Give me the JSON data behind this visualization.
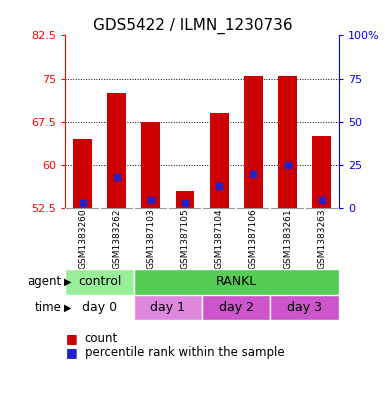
{
  "title": "GDS5422 / ILMN_1230736",
  "samples": [
    "GSM1383260",
    "GSM1383262",
    "GSM1387103",
    "GSM1387105",
    "GSM1387104",
    "GSM1387106",
    "GSM1383261",
    "GSM1383263"
  ],
  "counts": [
    64.5,
    72.5,
    67.5,
    55.5,
    69.0,
    75.5,
    75.5,
    65.0
  ],
  "percentiles": [
    3,
    18,
    5,
    3,
    13,
    20,
    25,
    5
  ],
  "ymin": 52.5,
  "ymax": 82.5,
  "yticks": [
    52.5,
    60.0,
    67.5,
    75.0,
    82.5
  ],
  "ytick_labels": [
    "52.5",
    "60",
    "67.5",
    "75",
    "82.5"
  ],
  "right_yticks_pct": [
    0,
    25,
    50,
    75,
    100
  ],
  "right_ytick_labels": [
    "0",
    "25",
    "50",
    "75",
    "100%"
  ],
  "bar_color": "#cc0000",
  "percentile_color": "#2222cc",
  "agent_color_control": "#99ee99",
  "agent_color_rankl": "#55cc55",
  "time_color_day0": "#ffffff",
  "time_color_day1": "#dd88dd",
  "time_color_day2": "#cc55cc",
  "time_color_day3": "#cc55cc",
  "panel_bg": "#cccccc",
  "plot_bg": "#ffffff",
  "grid_linestyle": "dotted",
  "grid_yticks": [
    60.0,
    67.5,
    75.0
  ]
}
